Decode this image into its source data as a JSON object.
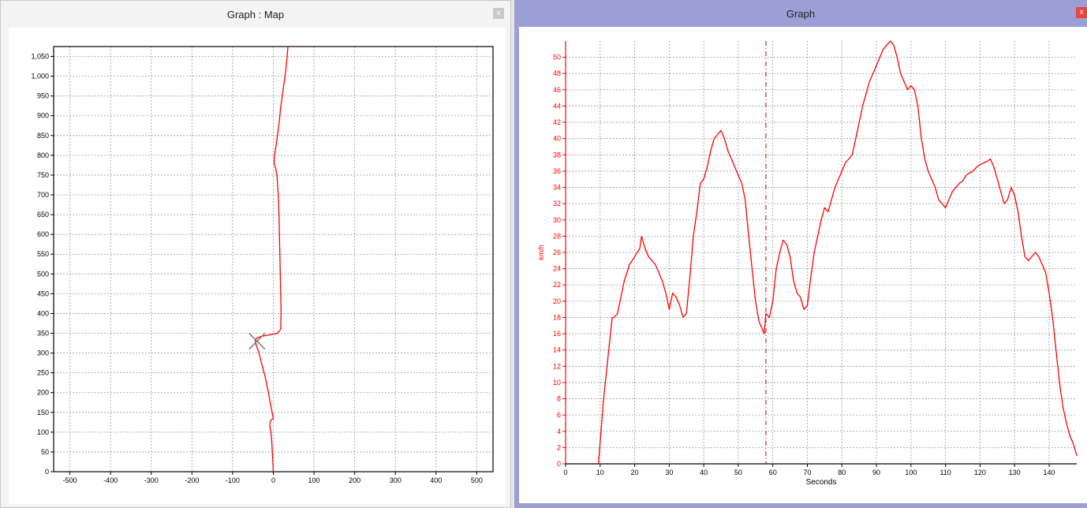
{
  "windows": {
    "map": {
      "title": "Graph : Map",
      "close_label": "x"
    },
    "graph": {
      "title": "Graph",
      "close_label": "x"
    }
  },
  "colors": {
    "trace": "#ff0000",
    "grid": "#9a9a9a",
    "axis": "#000000",
    "marker": "#808080",
    "title_active": "#9b9fd6"
  },
  "chart_data": [
    {
      "type": "line",
      "name": "map",
      "title": "",
      "xlabel": "",
      "ylabel": "",
      "xlim": [
        -540,
        540
      ],
      "ylim": [
        0,
        1075
      ],
      "x_ticks": [
        -500,
        -400,
        -300,
        -200,
        -100,
        0,
        100,
        200,
        300,
        400,
        500
      ],
      "y_ticks": [
        0,
        50,
        100,
        150,
        200,
        250,
        300,
        350,
        400,
        450,
        500,
        550,
        600,
        650,
        700,
        750,
        800,
        850,
        900,
        950,
        1000,
        1050
      ],
      "x_tick_labels": [
        "-500",
        "-400",
        "-300",
        "-200",
        "-100",
        "0",
        "100",
        "200",
        "300",
        "400",
        "500"
      ],
      "y_tick_labels": [
        "0",
        "50",
        "100",
        "150",
        "200",
        "250",
        "300",
        "350",
        "400",
        "450",
        "500",
        "550",
        "600",
        "650",
        "700",
        "750",
        "800",
        "850",
        "900",
        "950",
        "1,000",
        "1,050"
      ],
      "grid": true,
      "series": [
        {
          "x": [
            0,
            -2,
            -4,
            -6,
            -8,
            -9,
            -6,
            0,
            -5,
            -12,
            -20,
            -28,
            -35,
            -42,
            -45,
            -40,
            -30,
            -15,
            0,
            10,
            18,
            19,
            18,
            17,
            16,
            15,
            14,
            12,
            9,
            5,
            2,
            3,
            6,
            10,
            14,
            18,
            22,
            26,
            30,
            33,
            36
          ],
          "y": [
            0,
            40,
            80,
            100,
            110,
            120,
            130,
            135,
            160,
            200,
            240,
            270,
            300,
            320,
            333,
            338,
            342,
            345,
            348,
            350,
            360,
            400,
            450,
            500,
            550,
            600,
            650,
            700,
            750,
            770,
            780,
            800,
            820,
            850,
            880,
            920,
            950,
            980,
            1010,
            1040,
            1075
          ]
        }
      ],
      "markers": [
        {
          "x": -40,
          "y": 330,
          "symbol": "x"
        }
      ]
    },
    {
      "type": "line",
      "name": "speed",
      "title": "",
      "xlabel": "Seconds",
      "ylabel": "km/h",
      "xlim": [
        0,
        148
      ],
      "ylim": [
        0,
        52
      ],
      "x_ticks": [
        0,
        10,
        20,
        30,
        40,
        50,
        60,
        70,
        80,
        90,
        100,
        110,
        120,
        130,
        140
      ],
      "y_ticks": [
        0,
        2,
        4,
        6,
        8,
        10,
        12,
        14,
        16,
        18,
        20,
        22,
        24,
        26,
        28,
        30,
        32,
        34,
        36,
        38,
        40,
        42,
        44,
        46,
        48,
        50
      ],
      "x_tick_labels": [
        "0",
        "10",
        "20",
        "30",
        "40",
        "50",
        "60",
        "70",
        "80",
        "90",
        "100",
        "110",
        "120",
        "130",
        "140"
      ],
      "y_tick_labels": [
        "0",
        "2",
        "4",
        "6",
        "8",
        "10",
        "12",
        "14",
        "16",
        "18",
        "20",
        "22",
        "24",
        "26",
        "28",
        "30",
        "32",
        "34",
        "36",
        "38",
        "40",
        "42",
        "44",
        "46",
        "48",
        "50"
      ],
      "grid": true,
      "cursor_x": 58,
      "series": [
        {
          "x": [
            9.5,
            11,
            12.5,
            13.5,
            14,
            15,
            16,
            17,
            18.5,
            20,
            21.5,
            22,
            23,
            24,
            25,
            26,
            27,
            28,
            29,
            29.5,
            30,
            31,
            32,
            33,
            34,
            35,
            36,
            37,
            38,
            39,
            40,
            41,
            42,
            43,
            44,
            45,
            46,
            47,
            48,
            49,
            50,
            51,
            52,
            53,
            54,
            55,
            56,
            57,
            57.5,
            58,
            59,
            60,
            61,
            62,
            63,
            64,
            65,
            66,
            67,
            68,
            69,
            70,
            71,
            72,
            73,
            74,
            75,
            76,
            77,
            78,
            79,
            80,
            81,
            82,
            83,
            84,
            85,
            86,
            87,
            88,
            89,
            90,
            91,
            92,
            93,
            94,
            95,
            96,
            97,
            98,
            99,
            100,
            101,
            102,
            103,
            104,
            105,
            106,
            107,
            108,
            109,
            110,
            111,
            112,
            113,
            114,
            115,
            116,
            117,
            118,
            119,
            120,
            121,
            122,
            123,
            124,
            125,
            126,
            127,
            128,
            129,
            130,
            131,
            132,
            133,
            134,
            135,
            136,
            137,
            138,
            139,
            140,
            141,
            142,
            143,
            144,
            145,
            146,
            147,
            148
          ],
          "y": [
            0,
            8,
            14,
            18,
            18,
            18.5,
            20.5,
            22.5,
            24.5,
            25.5,
            26.5,
            28,
            26.5,
            25.5,
            25,
            24.5,
            23.5,
            22.5,
            21,
            20,
            19,
            21,
            20.5,
            19.5,
            18,
            18.5,
            23,
            28,
            31,
            34.5,
            35,
            36.5,
            38.5,
            40,
            40.5,
            41,
            40,
            38.5,
            37.5,
            36.5,
            35.5,
            34.5,
            32.5,
            28,
            24,
            20,
            17.5,
            16.5,
            16,
            18.5,
            18,
            20,
            24,
            26,
            27.5,
            27,
            25.5,
            22.5,
            21,
            20.5,
            19,
            19.5,
            23,
            26,
            28,
            30,
            31.5,
            31,
            32.5,
            34,
            35,
            36,
            37,
            37.5,
            38,
            40,
            42,
            44,
            45.5,
            47,
            48,
            49,
            50,
            51,
            51.5,
            52,
            51.5,
            50,
            48,
            47,
            46,
            46.5,
            46,
            44,
            40,
            37.5,
            36,
            35,
            34,
            32.5,
            32,
            31.5,
            32.5,
            33.5,
            34,
            34.5,
            34.8,
            35.5,
            35.8,
            36,
            36.5,
            36.8,
            37,
            37.2,
            37.5,
            36.5,
            35,
            33.5,
            32,
            32.5,
            34,
            33,
            31,
            28,
            25.5,
            25,
            25.5,
            26,
            25.5,
            24.5,
            23.5,
            21,
            18,
            14,
            10,
            7,
            5,
            3.5,
            2.5,
            1
          ]
        }
      ]
    }
  ]
}
